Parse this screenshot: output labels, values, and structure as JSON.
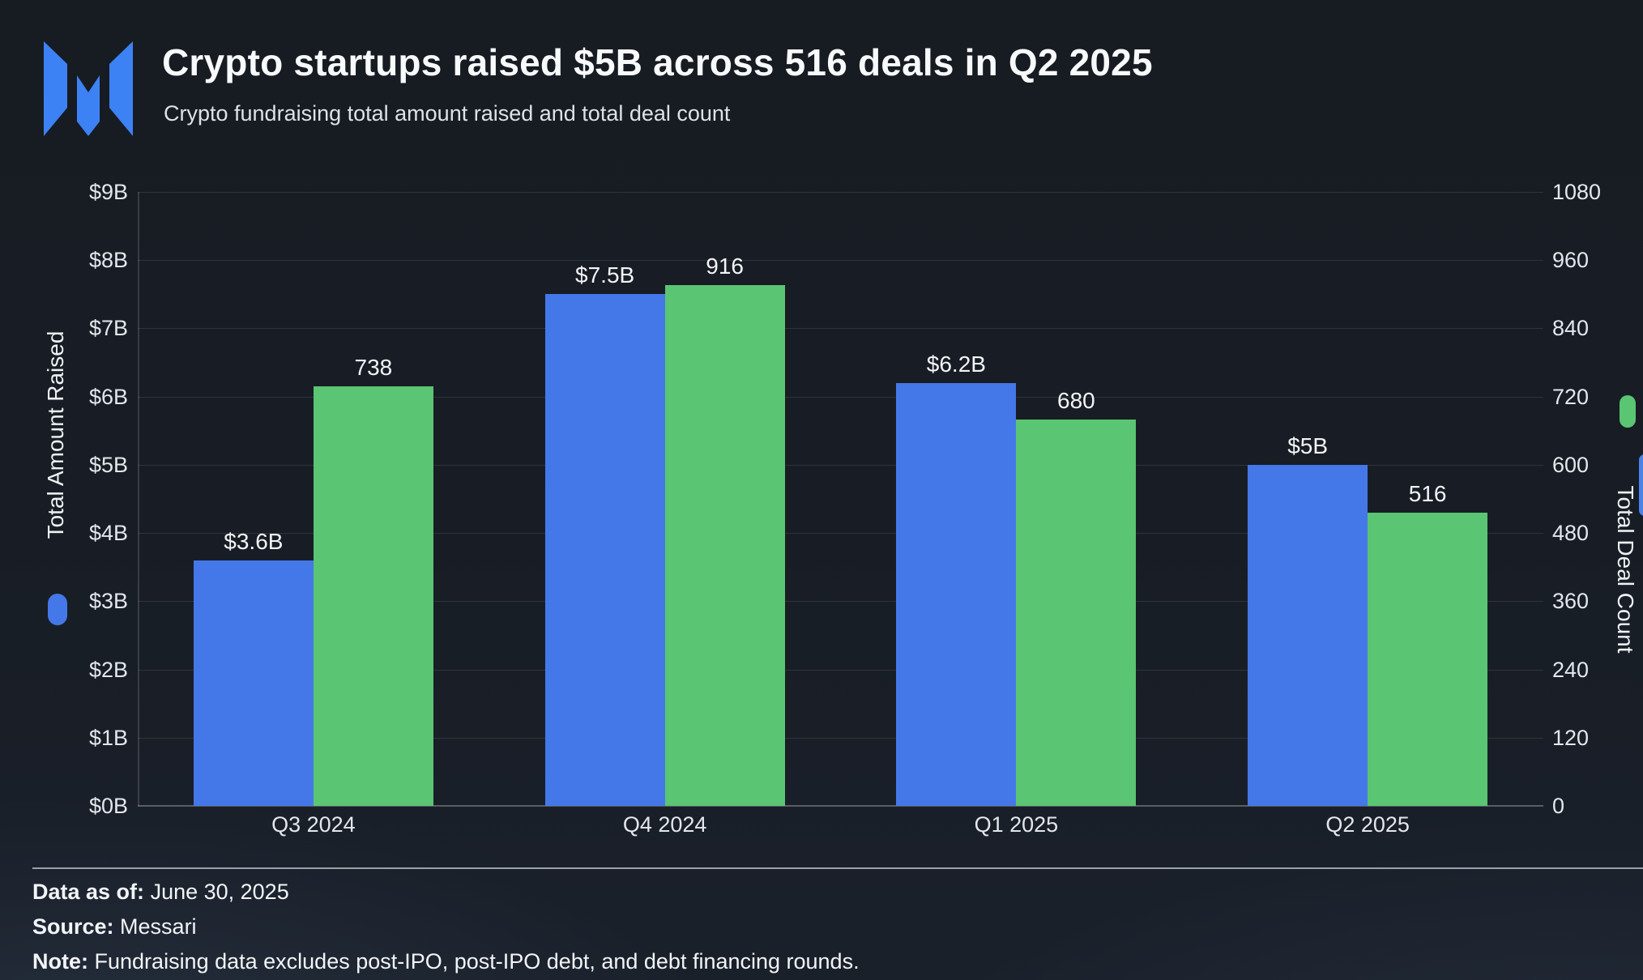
{
  "header": {
    "title": "Crypto startups raised $5B across 516 deals in Q2 2025",
    "subtitle": "Crypto fundraising total amount raised and total deal count",
    "logo": "messari-logo"
  },
  "colors": {
    "amount_blue": "#4478e8",
    "deals_green": "#5ac573",
    "logo_blue": "#3d82f4",
    "scrollbar_blue": "#4b82e8",
    "background": "#181d25"
  },
  "chart_data": {
    "type": "bar",
    "categories": [
      "Q3 2024",
      "Q4 2024",
      "Q1 2025",
      "Q2 2025"
    ],
    "series": [
      {
        "name": "Total Amount Raised",
        "axis": "left",
        "color": "#4478e8",
        "values": [
          3.6,
          7.5,
          6.2,
          5.0
        ],
        "labels": [
          "$3.6B",
          "$7.5B",
          "$6.2B",
          "$5B"
        ]
      },
      {
        "name": "Total Deal Count",
        "axis": "right",
        "color": "#5ac573",
        "values": [
          738,
          916,
          680,
          516
        ],
        "labels": [
          "738",
          "916",
          "680",
          "516"
        ]
      }
    ],
    "left_axis": {
      "title": "Total Amount Raised",
      "min": 0,
      "max": 9,
      "ticks": [
        "$0B",
        "$1B",
        "$2B",
        "$3B",
        "$4B",
        "$5B",
        "$6B",
        "$7B",
        "$8B",
        "$9B"
      ]
    },
    "right_axis": {
      "title": "Total Deal Count",
      "min": 0,
      "max": 1080,
      "ticks": [
        "0",
        "120",
        "240",
        "360",
        "480",
        "600",
        "720",
        "840",
        "960",
        "1080"
      ]
    },
    "grid": true,
    "legend_position": "axis-title-pills"
  },
  "footer": {
    "data_as_of_label": "Data as of:",
    "data_as_of_value": "June 30, 2025",
    "source_label": "Source:",
    "source_value": "Messari",
    "note_label": "Note:",
    "note_value": "Fundraising data excludes post-IPO, post-IPO debt, and debt financing rounds."
  }
}
